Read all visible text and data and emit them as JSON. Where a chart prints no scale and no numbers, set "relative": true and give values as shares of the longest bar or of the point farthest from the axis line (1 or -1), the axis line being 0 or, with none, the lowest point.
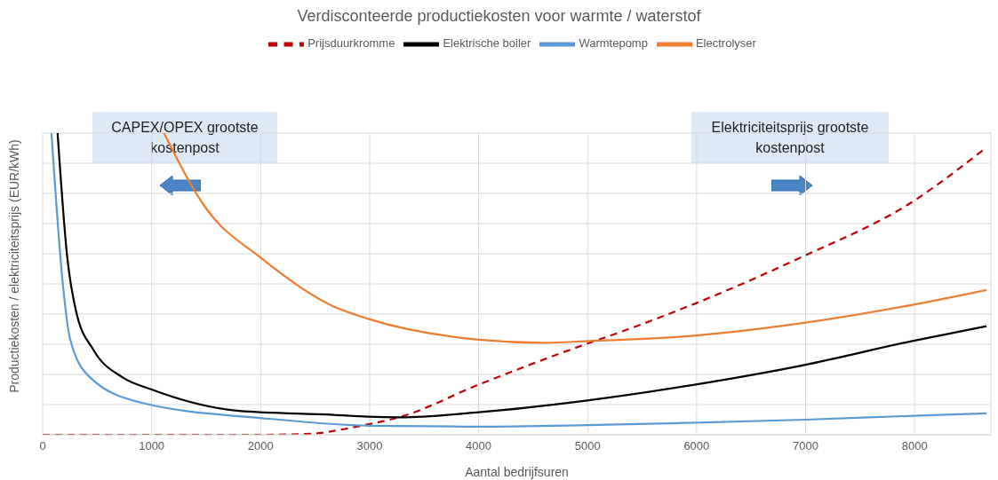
{
  "chart_data": {
    "type": "line",
    "title": "Verdisconteerde productiekosten voor warmte / waterstof",
    "xlabel": "Aantal bedrijfsuren",
    "ylabel": "Productiekosten / elektriciteitsprijs (EUR/kWh)",
    "relative": true,
    "xlim": [
      0,
      8700
    ],
    "xticks": [
      0,
      1000,
      2000,
      3000,
      4000,
      5000,
      6000,
      7000,
      8000
    ],
    "grid": true,
    "legend": "top",
    "marker": "none",
    "series": [
      {
        "name": "Prijsduurkromme",
        "color": "#c00000",
        "line_style": "dashed",
        "x": [
          0,
          1000,
          2000,
          2500,
          2670,
          2980,
          3290,
          3980,
          4980,
          5250,
          5980,
          6970,
          7970,
          8640
        ],
        "values": [
          0,
          0,
          0,
          0.004,
          0.013,
          0.034,
          0.06,
          0.163,
          0.3,
          0.334,
          0.434,
          0.59,
          0.77,
          0.947
        ]
      },
      {
        "name": "Elektrische boiler",
        "color": "#000000",
        "line_style": "solid",
        "x": [
          137,
          226,
          306,
          468,
          734,
          1000,
          1806,
          2670,
          2980,
          3290,
          3980,
          4980,
          5980,
          6970,
          7970,
          8660
        ],
        "values": [
          1,
          0.587,
          0.41,
          0.28,
          0.19,
          0.15,
          0.079,
          0.066,
          0.06,
          0.058,
          0.074,
          0.113,
          0.166,
          0.23,
          0.31,
          0.36
        ]
      },
      {
        "name": "Warmtepomp",
        "color": "#5b9bd5",
        "line_style": "solid",
        "x": [
          81,
          185,
          250,
          435,
          919,
          2080,
          3000,
          4000,
          5000,
          6000,
          7000,
          8000,
          8660
        ],
        "values": [
          1,
          0.5,
          0.32,
          0.19,
          0.105,
          0.053,
          0.03,
          0.027,
          0.032,
          0.04,
          0.05,
          0.063,
          0.071
        ]
      },
      {
        "name": "Electrolyser",
        "color": "#ed7d31",
        "line_style": "solid",
        "x": [
          1113,
          1500,
          2000,
          2670,
          2980,
          3980,
          4600,
          4980,
          5900,
          6970,
          7970,
          8660
        ],
        "values": [
          1,
          0.75,
          0.587,
          0.425,
          0.385,
          0.316,
          0.305,
          0.31,
          0.326,
          0.37,
          0.43,
          0.48
        ]
      }
    ],
    "annotations": [
      "CAPEX/OPEX grootste kostenpost",
      "Elektriciteitsprijs grootste kostenpost"
    ]
  }
}
